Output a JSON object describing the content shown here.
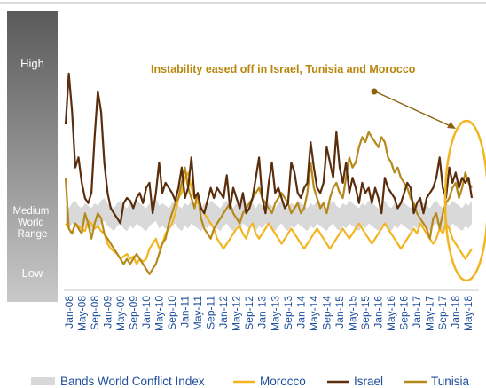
{
  "chart_data": {
    "type": "line",
    "title": "",
    "xlabel": "",
    "ylabel": "",
    "scale_labels": {
      "high": "High",
      "medium": "Medium World Range",
      "low": "Low"
    },
    "annotation": "Instability eased off in Israel, Tunisia and Morocco",
    "x_tick_labels": [
      "Jan-08",
      "May-08",
      "Sep-08",
      "Jan-09",
      "May-09",
      "Sep-09",
      "Jan-10",
      "May-10",
      "Sep-10",
      "Jan-11",
      "May-11",
      "Sep-11",
      "Jan-12",
      "May-12",
      "Sep-12",
      "Jan-13",
      "May-13",
      "Sep-13",
      "Jan-14",
      "May-14",
      "Sep-14",
      "Jan-15",
      "May-15",
      "Sep-15",
      "Jan-16",
      "May-16",
      "Sep-16",
      "Jan-17",
      "May-17",
      "Sep-17",
      "Jan-18",
      "May-18"
    ],
    "x_range": [
      "Jan-08",
      "Jul-18"
    ],
    "ylim": [
      0,
      100
    ],
    "legend": [
      {
        "key": "band",
        "label": "Bands World Conflict Index",
        "color": "#d9d9d9"
      },
      {
        "key": "morocco",
        "label": "Morocco",
        "color": "#f2b51f"
      },
      {
        "key": "israel",
        "label": "Israel",
        "color": "#5a2d0c"
      },
      {
        "key": "tunisia",
        "label": "Tunisia",
        "color": "#b5891a"
      }
    ],
    "band": {
      "name": "Bands World Conflict Index",
      "upper": [
        33,
        32,
        34,
        35,
        33,
        32,
        34,
        33,
        32,
        34,
        33,
        35,
        36,
        34,
        33,
        32,
        34,
        35,
        33,
        32,
        34,
        33,
        35,
        34,
        33,
        32,
        34,
        35,
        36,
        33,
        34,
        33,
        32,
        34,
        35,
        33,
        32,
        34,
        33,
        35,
        34,
        33,
        32,
        34,
        33,
        35,
        34,
        33,
        32,
        34,
        35,
        33,
        32,
        34,
        33,
        35,
        34,
        33,
        34,
        32,
        34,
        33,
        35,
        34,
        33,
        32,
        34,
        35,
        33,
        32,
        34,
        33,
        35,
        34,
        33,
        32,
        34,
        33,
        35,
        34,
        33,
        32,
        34,
        35,
        33,
        32,
        34,
        33,
        35,
        34,
        33,
        32,
        34,
        33,
        35,
        34,
        33,
        32,
        34,
        35,
        33,
        32,
        34,
        33,
        35,
        34,
        33,
        32,
        34,
        33,
        35,
        34,
        33,
        32,
        34,
        35,
        33,
        32,
        34,
        33,
        35,
        34,
        33,
        32,
        34,
        33,
        35
      ],
      "lower": [
        25,
        24,
        26,
        25,
        24,
        23,
        25,
        24,
        23,
        25,
        24,
        26,
        27,
        25,
        24,
        23,
        25,
        26,
        24,
        23,
        25,
        24,
        26,
        25,
        24,
        23,
        25,
        26,
        27,
        24,
        25,
        24,
        23,
        25,
        26,
        24,
        23,
        25,
        24,
        26,
        25,
        24,
        23,
        25,
        24,
        26,
        25,
        24,
        23,
        25,
        26,
        24,
        23,
        25,
        24,
        26,
        25,
        24,
        25,
        23,
        25,
        24,
        26,
        25,
        24,
        23,
        25,
        26,
        24,
        23,
        25,
        24,
        26,
        25,
        24,
        23,
        25,
        24,
        26,
        25,
        24,
        23,
        25,
        26,
        24,
        23,
        25,
        24,
        26,
        25,
        24,
        23,
        25,
        24,
        26,
        25,
        24,
        23,
        25,
        26,
        24,
        23,
        25,
        24,
        26,
        25,
        24,
        23,
        25,
        24,
        26,
        25,
        24,
        23,
        25,
        26,
        24,
        23,
        25,
        24,
        26,
        25,
        24,
        23,
        25,
        24,
        26
      ]
    },
    "series": [
      {
        "key": "israel",
        "name": "Israel",
        "color": "#5a2d0c",
        "values": [
          65,
          85,
          70,
          48,
          52,
          42,
          36,
          34,
          38,
          60,
          78,
          70,
          50,
          38,
          32,
          30,
          28,
          26,
          34,
          36,
          35,
          32,
          36,
          38,
          34,
          40,
          42,
          30,
          38,
          50,
          38,
          42,
          40,
          38,
          35,
          40,
          48,
          36,
          40,
          52,
          36,
          38,
          32,
          30,
          35,
          40,
          36,
          40,
          38,
          36,
          45,
          32,
          40,
          36,
          32,
          38,
          30,
          32,
          36,
          44,
          52,
          36,
          30,
          42,
          50,
          38,
          40,
          36,
          32,
          34,
          50,
          46,
          38,
          36,
          40,
          42,
          58,
          48,
          40,
          38,
          42,
          56,
          50,
          44,
          62,
          48,
          42,
          50,
          38,
          44,
          40,
          34,
          42,
          38,
          40,
          34,
          40,
          36,
          30,
          44,
          40,
          38,
          36,
          32,
          34,
          38,
          42,
          40,
          30,
          34,
          36,
          30,
          36,
          38,
          40,
          44,
          52,
          40,
          36,
          48,
          42,
          46,
          40,
          44,
          42,
          44,
          36
        ]
      },
      {
        "key": "morocco",
        "name": "Morocco",
        "color": "#f2b51f",
        "values": [
          26,
          24,
          22,
          26,
          25,
          24,
          23,
          27,
          26,
          24,
          25,
          23,
          22,
          18,
          16,
          15,
          14,
          12,
          13,
          14,
          12,
          13,
          10,
          12,
          11,
          12,
          16,
          18,
          20,
          16,
          18,
          22,
          24,
          26,
          30,
          36,
          38,
          44,
          46,
          40,
          36,
          34,
          32,
          30,
          28,
          26,
          24,
          20,
          18,
          16,
          18,
          20,
          22,
          24,
          25,
          22,
          20,
          24,
          26,
          22,
          20,
          22,
          24,
          26,
          24,
          22,
          20,
          18,
          20,
          22,
          24,
          22,
          20,
          18,
          16,
          18,
          20,
          22,
          24,
          22,
          20,
          18,
          16,
          18,
          20,
          22,
          24,
          22,
          20,
          22,
          24,
          26,
          24,
          22,
          20,
          18,
          20,
          22,
          24,
          26,
          24,
          22,
          20,
          18,
          16,
          18,
          20,
          22,
          24,
          22,
          26,
          24,
          22,
          20,
          18,
          20,
          24,
          22,
          26,
          24,
          20,
          18,
          16,
          14,
          12,
          14,
          16
        ]
      },
      {
        "key": "tunisia",
        "name": "Tunisia",
        "color": "#b5891a",
        "values": [
          44,
          24,
          22,
          26,
          24,
          22,
          30,
          26,
          20,
          26,
          30,
          28,
          22,
          20,
          18,
          16,
          14,
          12,
          10,
          12,
          10,
          12,
          14,
          12,
          10,
          8,
          6,
          8,
          10,
          14,
          18,
          20,
          26,
          30,
          34,
          36,
          42,
          48,
          40,
          36,
          32,
          38,
          28,
          24,
          22,
          20,
          24,
          26,
          28,
          30,
          32,
          34,
          30,
          28,
          26,
          30,
          32,
          34,
          36,
          38,
          40,
          36,
          34,
          32,
          30,
          34,
          36,
          38,
          36,
          34,
          30,
          32,
          34,
          30,
          32,
          38,
          50,
          40,
          36,
          32,
          34,
          30,
          36,
          40,
          42,
          38,
          36,
          44,
          52,
          48,
          50,
          56,
          60,
          58,
          62,
          60,
          58,
          56,
          60,
          58,
          52,
          50,
          46,
          48,
          44,
          42,
          40,
          36,
          34,
          30,
          28,
          26,
          24,
          20,
          28,
          30,
          24,
          30,
          34,
          36,
          40,
          42,
          36,
          40,
          46,
          42,
          40
        ]
      }
    ],
    "grid": false,
    "legend_placement": "bottom"
  }
}
